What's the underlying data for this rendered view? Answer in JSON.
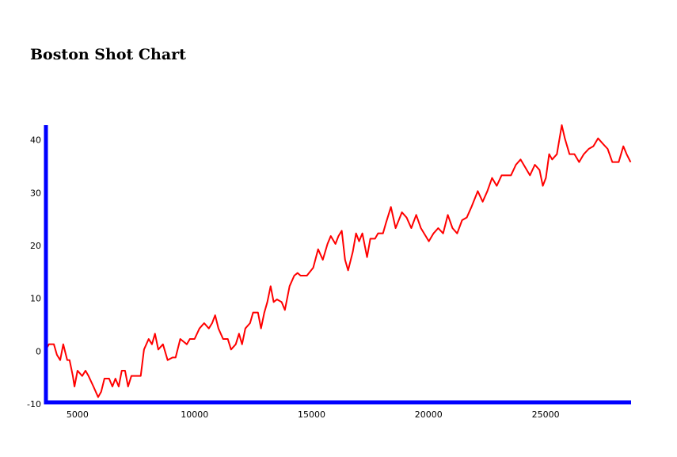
{
  "chart_data": {
    "type": "line",
    "title": "Boston Shot Chart",
    "x": [
      3650,
      3780,
      3990,
      4120,
      4260,
      4390,
      4560,
      4660,
      4800,
      4870,
      5000,
      5200,
      5340,
      5470,
      5680,
      5880,
      6010,
      6150,
      6350,
      6490,
      6620,
      6760,
      6890,
      7030,
      7160,
      7300,
      7570,
      7700,
      7840,
      8040,
      8180,
      8310,
      8450,
      8650,
      8850,
      9060,
      9190,
      9390,
      9670,
      9800,
      10000,
      10210,
      10410,
      10610,
      10750,
      10880,
      11020,
      11220,
      11420,
      11560,
      11760,
      11900,
      12030,
      12170,
      12370,
      12500,
      12710,
      12840,
      12980,
      13110,
      13250,
      13380,
      13520,
      13720,
      13860,
      14060,
      14260,
      14400,
      14530,
      14800,
      15070,
      15280,
      15480,
      15680,
      15820,
      16020,
      16150,
      16290,
      16430,
      16560,
      16760,
      16900,
      17030,
      17170,
      17370,
      17510,
      17710,
      17840,
      18050,
      18180,
      18390,
      18590,
      18860,
      19060,
      19260,
      19470,
      19670,
      20010,
      20210,
      20410,
      20620,
      20820,
      21020,
      21220,
      21430,
      21630,
      21830,
      22100,
      22310,
      22510,
      22710,
      22910,
      23120,
      23320,
      23520,
      23730,
      23930,
      24130,
      24330,
      24540,
      24740,
      24880,
      25010,
      25150,
      25280,
      25480,
      25690,
      25820,
      26020,
      26230,
      26430,
      26630,
      26840,
      27040,
      27240,
      27440,
      27650,
      27850,
      28120,
      28320,
      28460,
      28630
    ],
    "series": [
      {
        "color": "#ff0000",
        "values": [
          0,
          1,
          1,
          -1,
          -2,
          1,
          -2,
          -2,
          -5,
          -7,
          -4,
          -5,
          -4,
          -5,
          -7,
          -9,
          -8,
          -5.5,
          -5.5,
          -7,
          -5.5,
          -7,
          -4,
          -4,
          -7,
          -5,
          -5,
          -5,
          0,
          2,
          1,
          3,
          0,
          1,
          -2,
          -1.5,
          -1.5,
          2,
          1,
          2,
          2,
          4,
          5,
          4,
          5,
          6.5,
          4,
          2,
          2,
          0,
          1,
          3,
          1,
          4,
          5,
          7,
          7,
          4,
          7,
          9,
          12,
          9,
          9.5,
          9,
          7.5,
          12,
          14,
          14.5,
          14,
          14,
          15.5,
          19,
          17,
          20,
          21.5,
          20,
          21.5,
          22.5,
          17,
          15,
          18.5,
          22,
          20.5,
          22,
          17.5,
          21,
          21,
          22,
          22,
          24,
          27,
          23,
          26,
          25,
          23,
          25.5,
          23,
          20.5,
          22,
          23,
          22,
          25.5,
          23,
          22,
          24.5,
          25,
          27,
          30,
          28,
          30,
          32.5,
          31,
          33,
          33,
          33,
          35,
          36,
          34.5,
          33,
          35,
          34,
          31,
          32.5,
          37,
          36,
          37,
          42.5,
          40,
          37,
          37,
          35.5,
          37,
          38,
          38.5,
          40,
          39,
          38,
          35.5,
          35.5,
          38.5,
          37,
          35.5
        ]
      }
    ],
    "xlim": [
      3650,
      28650
    ],
    "ylim": [
      -10,
      42.5
    ],
    "xticks": [
      5000,
      10000,
      15000,
      20000,
      25000
    ],
    "yticks": [
      -10,
      0,
      10,
      20,
      30,
      40
    ]
  }
}
